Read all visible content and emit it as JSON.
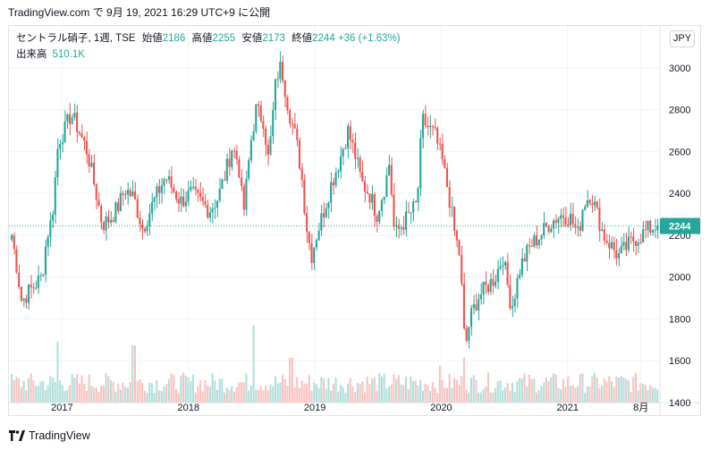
{
  "header": {
    "snapshot_text": "TradingView.com で 9月 19, 2021 16:29 UTC+9 に公開"
  },
  "legend": {
    "symbol": "セントラル硝子, 1週, TSE",
    "open_label": "始値",
    "open": "2186",
    "high_label": "高値",
    "high": "2255",
    "low_label": "安値",
    "low": "2173",
    "close_label": "終値",
    "close": "2244",
    "change": "+36 (+1.63%)",
    "volume_label": "出来高",
    "volume": "510.1K"
  },
  "currency_button": "JPY",
  "footer": {
    "brand": "TradingView"
  },
  "colors": {
    "up": "#26a69a",
    "down": "#ef5350",
    "up_volume": "#b2dfdb",
    "down_volume": "#f8c3c1",
    "grid": "#f0f3fa",
    "last_price_badge": "#26a69a"
  },
  "chart_data": {
    "type": "candlestick",
    "title": "",
    "interval": "1週",
    "ylim": [
      1400,
      3200
    ],
    "y_ticks": [
      "1400",
      "1600",
      "1800",
      "2000",
      "2200",
      "2400",
      "2600",
      "2800",
      "3000"
    ],
    "x_ticks": [
      "2017",
      "2018",
      "2019",
      "2020",
      "2021",
      "8月"
    ],
    "x_tick_positions": [
      2017.0,
      2018.0,
      2019.0,
      2020.0,
      2021.0,
      2021.58
    ],
    "x_range": [
      2016.58,
      2021.73
    ],
    "last_price": "2244",
    "grid": true,
    "close_anchors": [
      [
        2016.58,
        2200
      ],
      [
        2016.62,
        2050
      ],
      [
        2016.66,
        1880
      ],
      [
        2016.7,
        1920
      ],
      [
        2016.76,
        1960
      ],
      [
        2016.82,
        2000
      ],
      [
        2016.86,
        2200
      ],
      [
        2016.9,
        2280
      ],
      [
        2016.95,
        2650
      ],
      [
        2017.0,
        2700
      ],
      [
        2017.05,
        2780
      ],
      [
        2017.1,
        2720
      ],
      [
        2017.18,
        2600
      ],
      [
        2017.25,
        2400
      ],
      [
        2017.3,
        2250
      ],
      [
        2017.36,
        2280
      ],
      [
        2017.42,
        2330
      ],
      [
        2017.48,
        2420
      ],
      [
        2017.55,
        2380
      ],
      [
        2017.62,
        2230
      ],
      [
        2017.7,
        2350
      ],
      [
        2017.8,
        2480
      ],
      [
        2017.86,
        2420
      ],
      [
        2017.92,
        2360
      ],
      [
        2018.0,
        2400
      ],
      [
        2018.08,
        2360
      ],
      [
        2018.15,
        2320
      ],
      [
        2018.22,
        2380
      ],
      [
        2018.28,
        2500
      ],
      [
        2018.33,
        2620
      ],
      [
        2018.38,
        2550
      ],
      [
        2018.42,
        2300
      ],
      [
        2018.48,
        2650
      ],
      [
        2018.52,
        2800
      ],
      [
        2018.58,
        2750
      ],
      [
        2018.62,
        2550
      ],
      [
        2018.68,
        2950
      ],
      [
        2018.72,
        3010
      ],
      [
        2018.78,
        2800
      ],
      [
        2018.84,
        2650
      ],
      [
        2018.88,
        2500
      ],
      [
        2018.92,
        2250
      ],
      [
        2018.96,
        2100
      ],
      [
        2019.0,
        2200
      ],
      [
        2019.05,
        2300
      ],
      [
        2019.12,
        2450
      ],
      [
        2019.18,
        2550
      ],
      [
        2019.25,
        2700
      ],
      [
        2019.3,
        2600
      ],
      [
        2019.36,
        2450
      ],
      [
        2019.42,
        2400
      ],
      [
        2019.48,
        2300
      ],
      [
        2019.55,
        2450
      ],
      [
        2019.58,
        2550
      ],
      [
        2019.62,
        2200
      ],
      [
        2019.68,
        2250
      ],
      [
        2019.74,
        2300
      ],
      [
        2019.8,
        2350
      ],
      [
        2019.84,
        2750
      ],
      [
        2019.88,
        2720
      ],
      [
        2019.94,
        2680
      ],
      [
        2020.0,
        2550
      ],
      [
        2020.05,
        2400
      ],
      [
        2020.1,
        2200
      ],
      [
        2020.14,
        2100
      ],
      [
        2020.18,
        1650
      ],
      [
        2020.22,
        1800
      ],
      [
        2020.28,
        1900
      ],
      [
        2020.35,
        1950
      ],
      [
        2020.42,
        2000
      ],
      [
        2020.48,
        2100
      ],
      [
        2020.55,
        1850
      ],
      [
        2020.62,
        2050
      ],
      [
        2020.7,
        2150
      ],
      [
        2020.78,
        2200
      ],
      [
        2020.84,
        2250
      ],
      [
        2020.9,
        2280
      ],
      [
        2020.96,
        2300
      ],
      [
        2021.02,
        2280
      ],
      [
        2021.08,
        2200
      ],
      [
        2021.12,
        2350
      ],
      [
        2021.18,
        2400
      ],
      [
        2021.24,
        2280
      ],
      [
        2021.28,
        2200
      ],
      [
        2021.34,
        2150
      ],
      [
        2021.4,
        2100
      ],
      [
        2021.46,
        2140
      ],
      [
        2021.52,
        2180
      ],
      [
        2021.58,
        2200
      ],
      [
        2021.64,
        2230
      ],
      [
        2021.71,
        2244
      ]
    ],
    "volume_spikes": [
      [
        2016.94,
        0.75
      ],
      [
        2017.55,
        0.7
      ],
      [
        2018.5,
        0.95
      ],
      [
        2018.8,
        0.55
      ],
      [
        2020.18,
        0.55
      ],
      [
        2019.98,
        0.45
      ]
    ]
  }
}
